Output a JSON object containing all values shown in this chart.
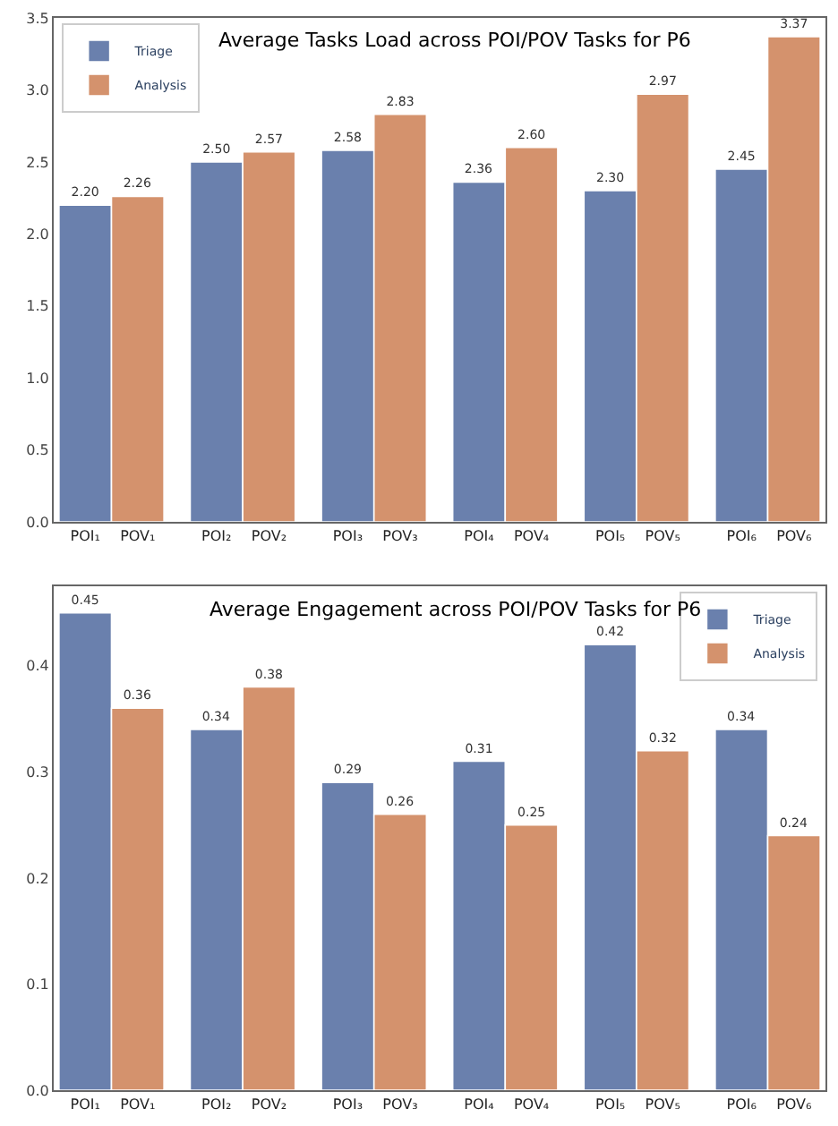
{
  "chart_data": [
    {
      "type": "bar",
      "title": "Average Tasks Load across POI/POV Tasks for P6",
      "categories": [
        "POI₁",
        "POV₁",
        "POI₂",
        "POV₂",
        "POI₃",
        "POV₃",
        "POI₄",
        "POV₄",
        "POI₅",
        "POV₅",
        "POI₆",
        "POV₆"
      ],
      "series": [
        {
          "name": "Triage",
          "color": "#6a80ad",
          "values": [
            2.2,
            null,
            2.5,
            null,
            2.58,
            null,
            2.36,
            null,
            2.3,
            null,
            2.45,
            null
          ],
          "value_labels": [
            "2.20",
            null,
            "2.50",
            null,
            "2.58",
            null,
            "2.36",
            null,
            "2.30",
            null,
            "2.45",
            null
          ]
        },
        {
          "name": "Analysis",
          "color": "#d4926d",
          "values": [
            null,
            2.26,
            null,
            2.57,
            null,
            2.83,
            null,
            2.6,
            null,
            2.97,
            null,
            3.37
          ],
          "value_labels": [
            null,
            "2.26",
            null,
            "2.57",
            null,
            "2.83",
            null,
            "2.60",
            null,
            "2.97",
            null,
            "3.37"
          ]
        }
      ],
      "ylim": [
        0,
        3.5
      ],
      "yticks": [
        "0.0",
        "0.5",
        "1.0",
        "1.5",
        "2.0",
        "2.5",
        "3.0",
        "3.5"
      ],
      "legend": "top left"
    },
    {
      "type": "bar",
      "title": "Average Engagement across POI/POV Tasks for P6",
      "categories": [
        "POI₁",
        "POV₁",
        "POI₂",
        "POV₂",
        "POI₃",
        "POV₃",
        "POI₄",
        "POV₄",
        "POI₅",
        "POV₅",
        "POI₆",
        "POV₆"
      ],
      "series": [
        {
          "name": "Triage",
          "color": "#6a80ad",
          "values": [
            0.45,
            null,
            0.34,
            null,
            0.29,
            null,
            0.31,
            null,
            0.42,
            null,
            0.34,
            null
          ],
          "value_labels": [
            "0.45",
            null,
            "0.34",
            null,
            "0.29",
            null,
            "0.31",
            null,
            "0.42",
            null,
            "0.34",
            null
          ]
        },
        {
          "name": "Analysis",
          "color": "#d4926d",
          "values": [
            null,
            0.36,
            null,
            0.38,
            null,
            0.26,
            null,
            0.25,
            null,
            0.32,
            null,
            0.24
          ],
          "value_labels": [
            null,
            "0.36",
            null,
            "0.38",
            null,
            "0.26",
            null,
            "0.25",
            null,
            "0.32",
            null,
            "0.24"
          ]
        }
      ],
      "ylim": [
        0,
        0.475
      ],
      "yticks": [
        "0.0",
        "0.1",
        "0.2",
        "0.3",
        "0.4"
      ],
      "legend": "top right"
    }
  ]
}
